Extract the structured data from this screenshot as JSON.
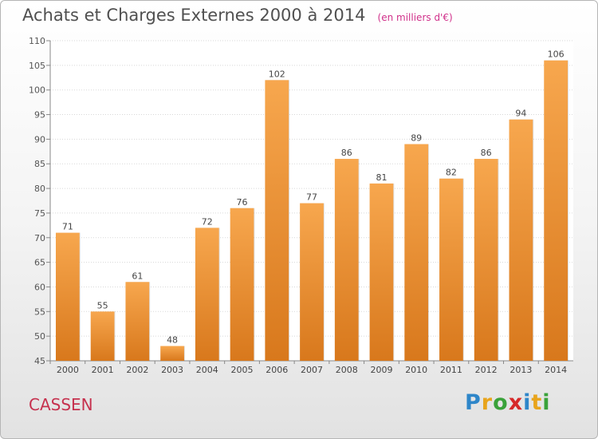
{
  "title": "Achats et Charges Externes 2000 à 2014",
  "unit": "(en milliers d'€)",
  "commune": "CASSEN",
  "logo": {
    "letters": [
      "P",
      "r",
      "o",
      "x",
      "i",
      "t",
      "i"
    ],
    "colors": [
      "#2e86c9",
      "#e8a41c",
      "#3aa23a",
      "#d62828",
      "#2e86c9",
      "#e8a41c",
      "#3aa23a"
    ]
  },
  "colors": {
    "bar_light": "#f7a74e",
    "bar_dark": "#d8781c",
    "title": "#505050",
    "unit": "#d0308a",
    "commune": "#c6314e"
  },
  "chart_data": {
    "type": "bar",
    "title": "Achats et Charges Externes 2000 à 2014",
    "categories": [
      "2000",
      "2001",
      "2002",
      "2003",
      "2004",
      "2005",
      "2006",
      "2007",
      "2008",
      "2009",
      "2010",
      "2011",
      "2012",
      "2013",
      "2014"
    ],
    "values": [
      71,
      55,
      61,
      48,
      72,
      76,
      102,
      77,
      86,
      81,
      89,
      82,
      86,
      94,
      106
    ],
    "ylim": [
      45,
      110
    ],
    "yticks": [
      45,
      50,
      55,
      60,
      65,
      70,
      75,
      80,
      85,
      90,
      95,
      100,
      105,
      110
    ],
    "grid": true,
    "xlabel": "",
    "ylabel": ""
  }
}
